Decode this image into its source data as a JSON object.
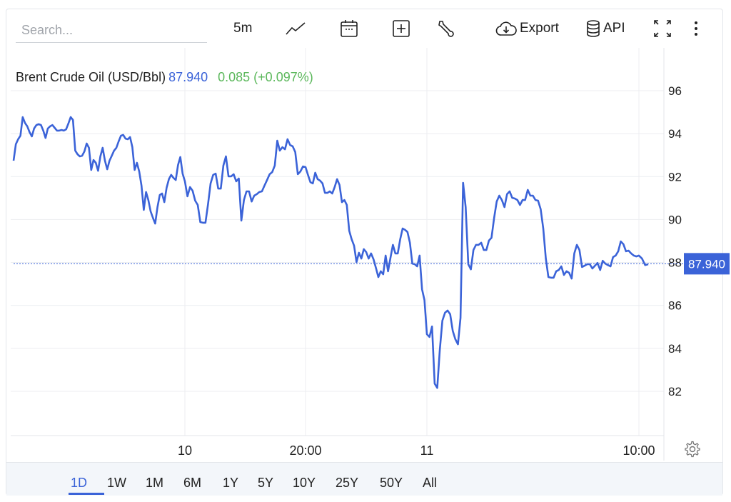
{
  "toolbar": {
    "search_placeholder": "Search...",
    "interval": "5m",
    "chart_type_icon": "line-chart-icon",
    "calendar_icon": "calendar-icon",
    "add_icon": "plus-square-icon",
    "tools_icon": "wrench-icon",
    "export_label": "Export",
    "export_icon": "cloud-download-icon",
    "api_label": "API",
    "api_icon": "database-icon",
    "fullscreen_icon": "expand-icon",
    "more_icon": "more-vertical-icon"
  },
  "legend": {
    "name": "Brent Crude Oil (USD/Bbl)",
    "price": "87.940",
    "change": "0.085 (+0.097%)"
  },
  "colors": {
    "line": "#3b63d8",
    "change_positive": "#5cb85c",
    "price_tag": "#3b63d8"
  },
  "chart_data": {
    "type": "line",
    "title": "",
    "xlabel": "",
    "ylabel": "",
    "ylim": [
      80,
      98
    ],
    "y_axis_position": "right",
    "y_ticks": [
      82,
      84,
      86,
      88,
      90,
      92,
      94,
      96
    ],
    "y_tick_labels": [
      "82",
      "84",
      "86",
      "88",
      "90",
      "92",
      "94",
      "96"
    ],
    "x_ticks": [
      {
        "label": "10",
        "index": 75
      },
      {
        "label": "20:00",
        "index": 122
      },
      {
        "label": "11",
        "index": 172
      },
      {
        "label": "10:00",
        "index": 254
      }
    ],
    "grid": true,
    "last_price": 87.94,
    "last_price_label": "87.940",
    "series": [
      {
        "values": [
          92.74,
          93.51,
          93.74,
          93.9,
          94.77,
          94.5,
          94.34,
          94.07,
          93.87,
          94.24,
          94.4,
          94.44,
          94.4,
          94.14,
          93.8,
          94.24,
          94.34,
          94.4,
          94.27,
          94.14,
          94.14,
          94.17,
          94.14,
          94.2,
          94.47,
          94.77,
          94.64,
          93.21,
          93.04,
          92.94,
          92.97,
          93.17,
          93.54,
          93.34,
          92.31,
          92.77,
          92.64,
          92.27,
          92.94,
          93.34,
          92.74,
          92.34,
          92.74,
          92.97,
          93.21,
          93.34,
          93.64,
          93.9,
          93.94,
          93.77,
          93.74,
          93.84,
          93.37,
          92.31,
          92.64,
          92.24,
          91.58,
          90.45,
          91.28,
          90.91,
          90.38,
          90.08,
          89.81,
          90.58,
          91.14,
          91.21,
          90.81,
          91.48,
          91.88,
          92.08,
          91.94,
          91.84,
          92.54,
          92.91,
          92.14,
          91.78,
          91.08,
          91.51,
          91.34,
          90.88,
          90.68,
          89.88,
          89.85,
          89.85,
          90.71,
          91.68,
          92.08,
          92.14,
          91.44,
          91.44,
          92.51,
          92.94,
          92.01,
          92.01,
          92.11,
          91.78,
          91.91,
          89.95,
          90.91,
          91.31,
          91.31,
          90.84,
          91.11,
          91.18,
          91.28,
          91.31,
          91.58,
          91.84,
          92.11,
          92.21,
          92.51,
          93.67,
          93.21,
          93.37,
          93.27,
          93.74,
          93.47,
          93.41,
          93.14,
          92.11,
          92.24,
          92.47,
          92.44,
          92.08,
          91.74,
          91.68,
          92.18,
          91.88,
          91.81,
          91.68,
          91.24,
          91.24,
          91.31,
          91.21,
          91.51,
          91.88,
          91.61,
          90.81,
          90.91,
          90.68,
          89.48,
          89.08,
          88.78,
          88.02,
          88.45,
          88.18,
          88.62,
          88.48,
          88.18,
          88.42,
          88.15,
          87.75,
          87.32,
          87.59,
          87.45,
          88.32,
          87.59,
          88.22,
          88.82,
          88.42,
          88.42,
          89.08,
          89.58,
          89.52,
          89.42,
          88.92,
          87.95,
          87.92,
          87.82,
          88.32,
          86.75,
          86.25,
          84.66,
          84.53,
          85.02,
          82.36,
          82.16,
          83.93,
          85.29,
          85.66,
          85.76,
          85.59,
          84.82,
          84.43,
          84.19,
          85.42,
          91.71,
          90.58,
          87.92,
          87.68,
          88.58,
          88.82,
          88.82,
          88.92,
          88.58,
          88.58,
          89.02,
          89.15,
          90.08,
          90.84,
          91.11,
          90.91,
          90.58,
          91.18,
          91.31,
          91.01,
          90.98,
          90.91,
          90.68,
          90.91,
          90.91,
          91.38,
          91.11,
          91.11,
          90.91,
          90.88,
          90.48,
          89.58,
          88.18,
          87.32,
          87.29,
          87.29,
          87.59,
          87.65,
          87.82,
          87.42,
          87.59,
          87.52,
          87.25,
          88.42,
          88.82,
          88.58,
          87.79,
          87.85,
          87.92,
          87.92,
          87.72,
          87.85,
          87.98,
          87.65,
          88.08,
          87.95,
          87.88,
          87.82,
          88.25,
          88.32,
          88.52,
          88.98,
          88.85,
          88.52,
          88.55,
          88.42,
          88.32,
          88.28,
          88.32,
          88.18,
          87.88,
          87.92
        ]
      }
    ]
  },
  "ranges": {
    "items": [
      "1D",
      "1W",
      "1M",
      "6M",
      "1Y",
      "5Y",
      "10Y",
      "25Y",
      "50Y",
      "All"
    ],
    "active": "1D"
  },
  "settings_icon": "gear-icon"
}
